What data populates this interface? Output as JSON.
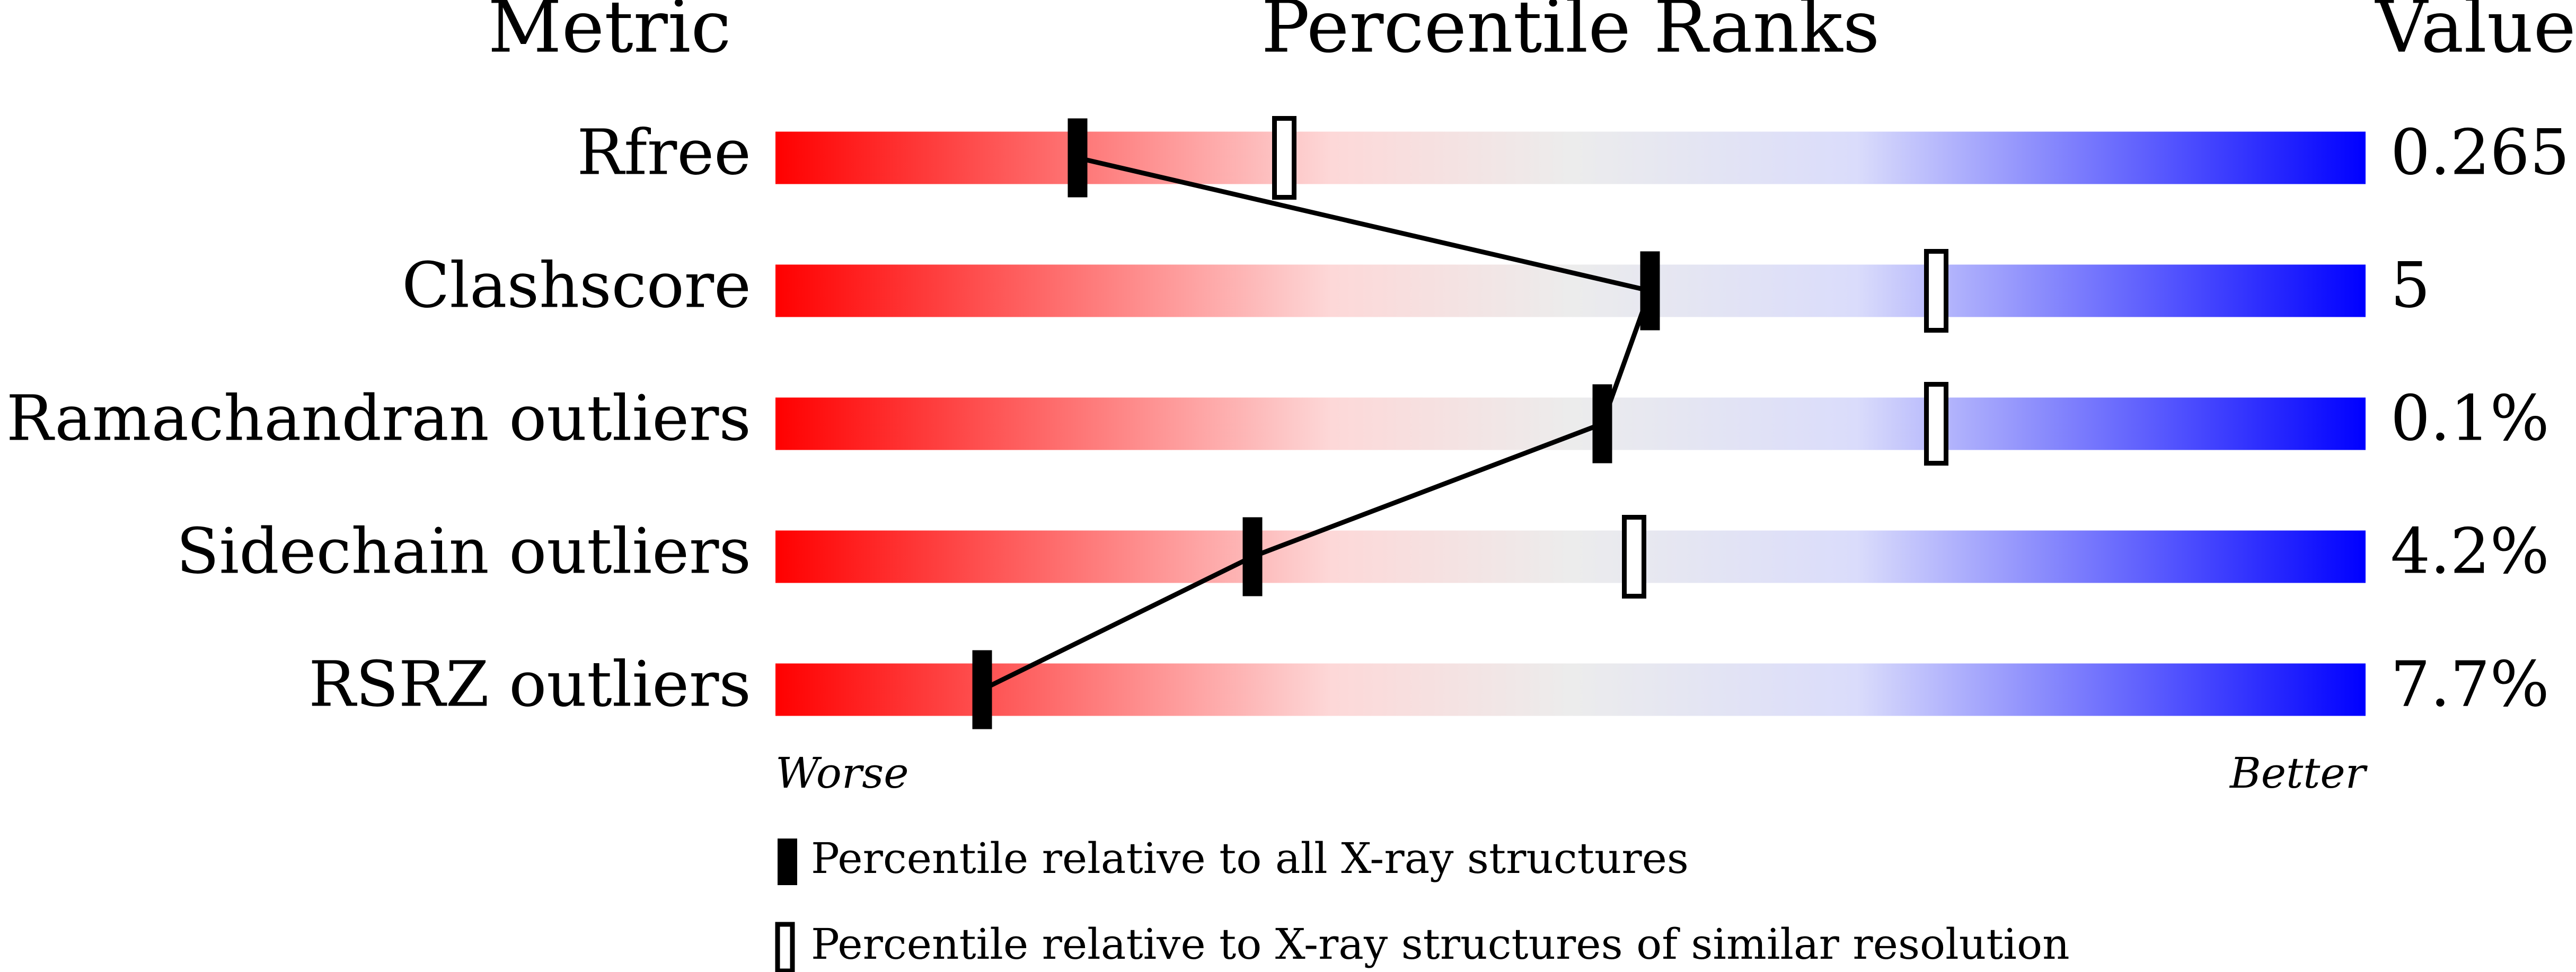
{
  "chart_data": {
    "type": "percentile-slider",
    "headers": {
      "metric": "Metric",
      "ranks": "Percentile Ranks",
      "value": "Value"
    },
    "categories": [
      "Rfree",
      "Clashscore",
      "Ramachandran outliers",
      "Sidechain outliers",
      "RSRZ outliers"
    ],
    "metric_values": [
      "0.265",
      "5",
      "0.1%",
      "4.2%",
      "7.7%"
    ],
    "series": [
      {
        "name": "Percentile relative to all X-ray structures",
        "color": "#000000",
        "values": [
          19,
          55,
          52,
          30,
          13
        ]
      },
      {
        "name": "Percentile relative to X-ray structures of similar resolution",
        "color": "#ffffff",
        "values": [
          32,
          73,
          73,
          54,
          null
        ]
      }
    ],
    "xlim": [
      0,
      100
    ],
    "axis_ends": {
      "low": "Worse",
      "high": "Better"
    }
  }
}
